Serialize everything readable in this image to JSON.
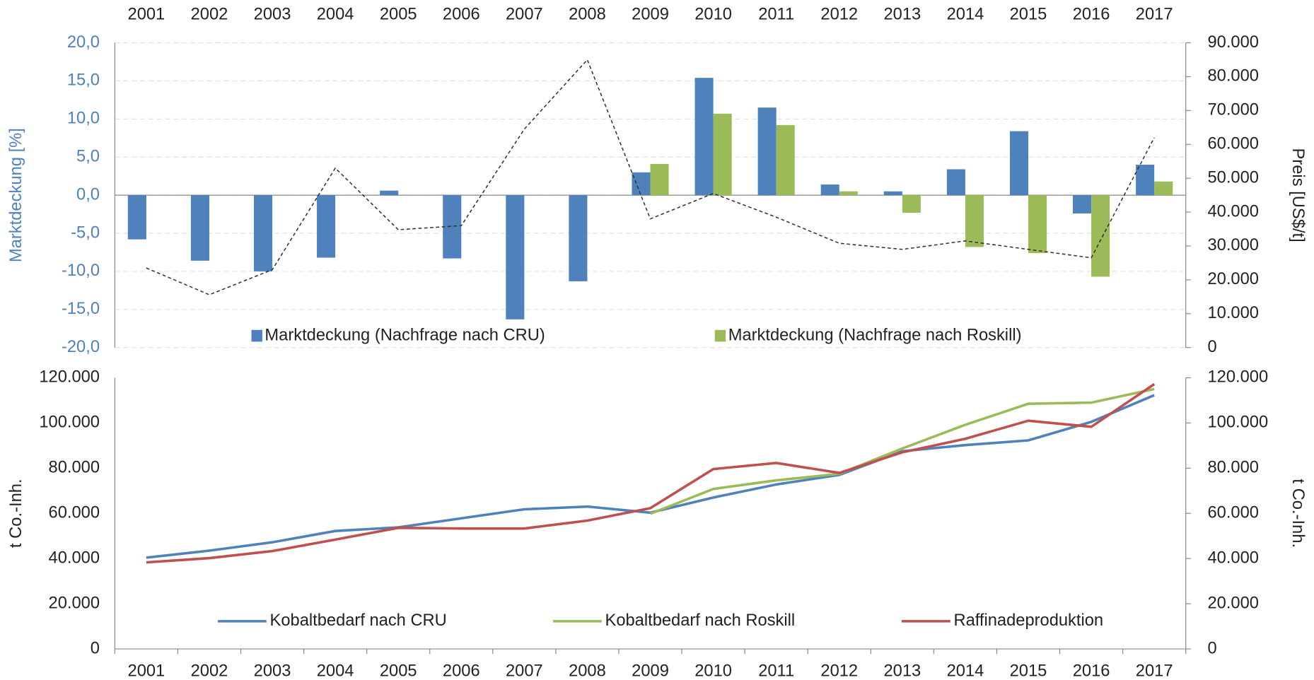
{
  "chart_data": [
    {
      "type": "bar",
      "ylabel": "Marktdeckung [%]",
      "y2label": "Preis [US$/t]",
      "categories": [
        "2001",
        "2002",
        "2003",
        "2004",
        "2005",
        "2006",
        "2007",
        "2008",
        "2009",
        "2010",
        "2011",
        "2012",
        "2013",
        "2014",
        "2015",
        "2016",
        "2017"
      ],
      "ylim": [
        -20,
        20
      ],
      "yticks": [
        {
          "value": -20,
          "label": "-20,0"
        },
        {
          "value": -15,
          "label": "-15,0"
        },
        {
          "value": -10,
          "label": "-10,0"
        },
        {
          "value": -5,
          "label": "-5,0"
        },
        {
          "value": 0,
          "label": "0,0"
        },
        {
          "value": 5,
          "label": "5,0"
        },
        {
          "value": 10,
          "label": "10,0"
        },
        {
          "value": 15,
          "label": "15,0"
        },
        {
          "value": 20,
          "label": "20,0"
        }
      ],
      "y2lim": [
        0,
        90000
      ],
      "y2ticks": [
        0,
        {
          "value": 10000,
          "label": "10.000"
        },
        {
          "value": 20000,
          "label": "20.000"
        },
        {
          "value": 30000,
          "label": "30.000"
        },
        {
          "value": 40000,
          "label": "40.000"
        },
        {
          "value": 50000,
          "label": "50.000"
        },
        {
          "value": 60000,
          "label": "60.000"
        },
        {
          "value": 70000,
          "label": "70.000"
        },
        {
          "value": 80000,
          "label": "80.000"
        },
        {
          "value": 90000,
          "label": "90.000"
        }
      ],
      "grid": true,
      "series": [
        {
          "name": "Marktdeckung (Nachfrage nach CRU)",
          "color": "#4f81bd",
          "values": [
            -5.8,
            -8.6,
            -10.0,
            -8.2,
            0.6,
            -8.3,
            -16.3,
            -11.3,
            3.0,
            15.4,
            11.5,
            1.4,
            0.5,
            3.4,
            8.4,
            -2.4,
            4.0
          ]
        },
        {
          "name": "Marktdeckung (Nachfrage nach Roskill)",
          "color": "#9bbb59",
          "values": [
            null,
            null,
            null,
            null,
            null,
            null,
            null,
            null,
            4.1,
            10.7,
            9.2,
            0.5,
            -2.3,
            -6.8,
            -7.6,
            -10.7,
            1.8
          ]
        },
        {
          "type": "line",
          "axis": "y2",
          "line_style": "dashed",
          "color": "#333333",
          "values": [
            23500,
            15600,
            23000,
            53000,
            34800,
            36000,
            64500,
            85000,
            38000,
            45500,
            38500,
            30800,
            29000,
            31500,
            29000,
            26500,
            62000
          ]
        }
      ]
    },
    {
      "type": "line",
      "ylabel": "t Co.-Inh.",
      "y2label": "t Co.-Inh.",
      "categories": [
        "2001",
        "2002",
        "2003",
        "2004",
        "2005",
        "2006",
        "2007",
        "2008",
        "2009",
        "2010",
        "2011",
        "2012",
        "2013",
        "2014",
        "2015",
        "2016",
        "2017"
      ],
      "ylim": [
        0,
        120000
      ],
      "yticks": [
        0,
        {
          "value": 20000,
          "label": "20.000"
        },
        {
          "value": 40000,
          "label": "40.000"
        },
        {
          "value": 60000,
          "label": "60.000"
        },
        {
          "value": 80000,
          "label": "80.000"
        },
        {
          "value": 100000,
          "label": "100.000"
        },
        {
          "value": 120000,
          "label": "120.000"
        }
      ],
      "y2lim": [
        0,
        120000
      ],
      "y2ticks": [
        0,
        {
          "value": 20000,
          "label": "20.000"
        },
        {
          "value": 40000,
          "label": "40.000"
        },
        {
          "value": 60000,
          "label": "60.000"
        },
        {
          "value": 80000,
          "label": "80.000"
        },
        {
          "value": 100000,
          "label": "100.000"
        },
        {
          "value": 120000,
          "label": "120.000"
        }
      ],
      "grid": false,
      "series": [
        {
          "name": "Kobaltbedarf nach CRU",
          "color": "#4f81bd",
          "values": [
            40400,
            43500,
            47200,
            52200,
            53800,
            57800,
            61800,
            63000,
            60300,
            67000,
            72800,
            77000,
            87500,
            90200,
            92300,
            100500,
            112300
          ]
        },
        {
          "name": "Kobaltbedarf nach Roskill",
          "color": "#9bbb59",
          "values": [
            null,
            null,
            null,
            null,
            null,
            null,
            null,
            null,
            59800,
            70800,
            74600,
            77500,
            88700,
            99200,
            108500,
            109000,
            115000
          ]
        },
        {
          "name": "Raffinadeproduktion",
          "color": "#c0504d",
          "values": [
            38300,
            40200,
            43300,
            48400,
            53600,
            53300,
            53300,
            56800,
            62300,
            79600,
            82300,
            77900,
            87000,
            93000,
            101000,
            98300,
            117200
          ]
        }
      ]
    }
  ]
}
